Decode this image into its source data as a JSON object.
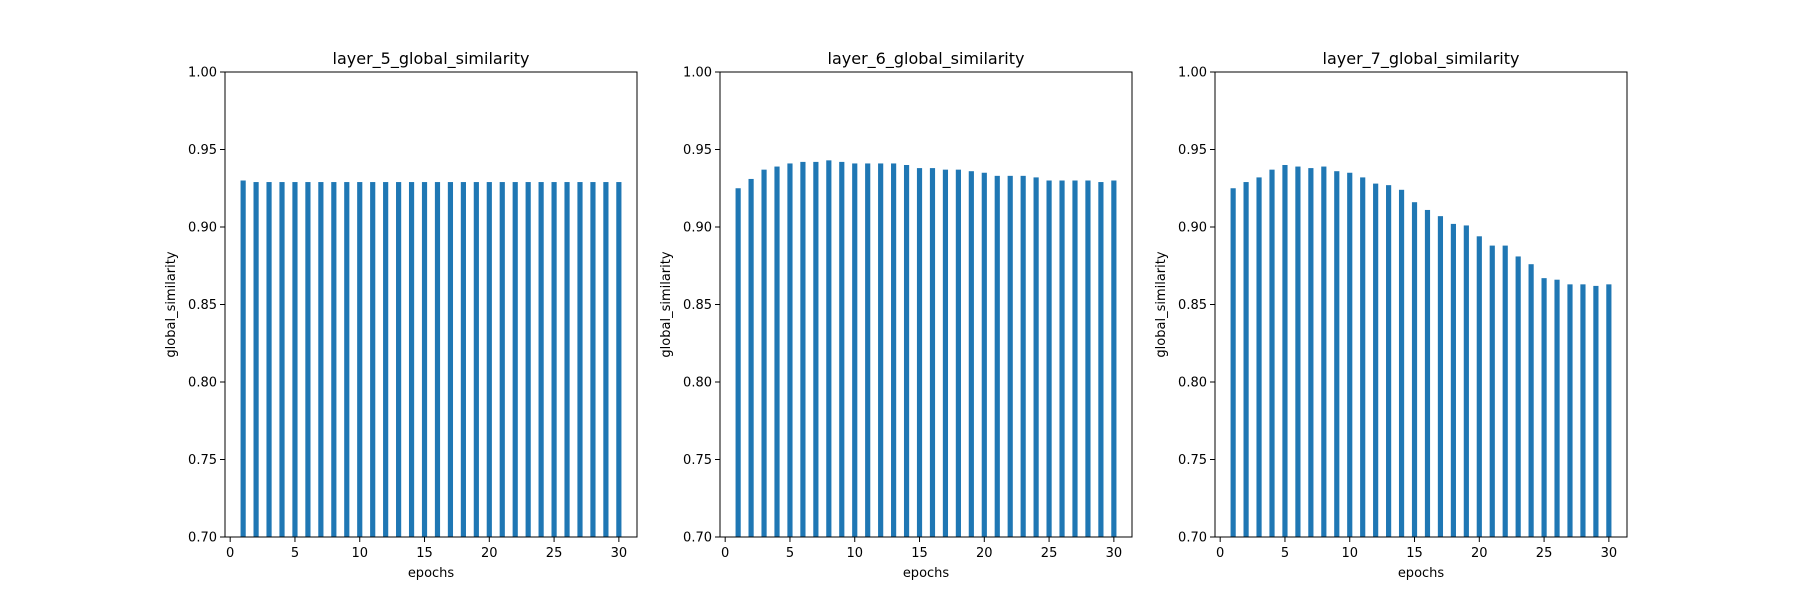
{
  "chart_data": [
    {
      "type": "bar",
      "title": "layer_5_global_similarity",
      "xlabel": "epochs",
      "ylabel": "global_similarity",
      "xlim": [
        -0.4,
        31.4
      ],
      "ylim": [
        0.7,
        1.0
      ],
      "xticks": [
        0,
        5,
        10,
        15,
        20,
        25,
        30
      ],
      "xtick_labels": [
        "0",
        "5",
        "10",
        "15",
        "20",
        "25",
        "30"
      ],
      "yticks": [
        0.7,
        0.75,
        0.8,
        0.85,
        0.9,
        0.95,
        1.0
      ],
      "ytick_labels": [
        "0.70",
        "0.75",
        "0.80",
        "0.85",
        "0.90",
        "0.95",
        "1.00"
      ],
      "bar_color": "#1f77b4",
      "x": [
        1,
        2,
        3,
        4,
        5,
        6,
        7,
        8,
        9,
        10,
        11,
        12,
        13,
        14,
        15,
        16,
        17,
        18,
        19,
        20,
        21,
        22,
        23,
        24,
        25,
        26,
        27,
        28,
        29,
        30
      ],
      "values": [
        0.93,
        0.929,
        0.929,
        0.929,
        0.929,
        0.929,
        0.929,
        0.929,
        0.929,
        0.929,
        0.929,
        0.929,
        0.929,
        0.929,
        0.929,
        0.929,
        0.929,
        0.929,
        0.929,
        0.929,
        0.929,
        0.929,
        0.929,
        0.929,
        0.929,
        0.929,
        0.929,
        0.929,
        0.929,
        0.929
      ]
    },
    {
      "type": "bar",
      "title": "layer_6_global_similarity",
      "xlabel": "epochs",
      "ylabel": "global_similarity",
      "xlim": [
        -0.4,
        31.4
      ],
      "ylim": [
        0.7,
        1.0
      ],
      "xticks": [
        0,
        5,
        10,
        15,
        20,
        25,
        30
      ],
      "xtick_labels": [
        "0",
        "5",
        "10",
        "15",
        "20",
        "25",
        "30"
      ],
      "yticks": [
        0.7,
        0.75,
        0.8,
        0.85,
        0.9,
        0.95,
        1.0
      ],
      "ytick_labels": [
        "0.70",
        "0.75",
        "0.80",
        "0.85",
        "0.90",
        "0.95",
        "1.00"
      ],
      "bar_color": "#1f77b4",
      "x": [
        1,
        2,
        3,
        4,
        5,
        6,
        7,
        8,
        9,
        10,
        11,
        12,
        13,
        14,
        15,
        16,
        17,
        18,
        19,
        20,
        21,
        22,
        23,
        24,
        25,
        26,
        27,
        28,
        29,
        30
      ],
      "values": [
        0.925,
        0.931,
        0.937,
        0.939,
        0.941,
        0.942,
        0.942,
        0.943,
        0.942,
        0.941,
        0.941,
        0.941,
        0.941,
        0.94,
        0.938,
        0.938,
        0.937,
        0.937,
        0.936,
        0.935,
        0.933,
        0.933,
        0.933,
        0.932,
        0.93,
        0.93,
        0.93,
        0.93,
        0.929,
        0.93
      ]
    },
    {
      "type": "bar",
      "title": "layer_7_global_similarity",
      "xlabel": "epochs",
      "ylabel": "global_similarity",
      "xlim": [
        -0.4,
        31.4
      ],
      "ylim": [
        0.7,
        1.0
      ],
      "xticks": [
        0,
        5,
        10,
        15,
        20,
        25,
        30
      ],
      "xtick_labels": [
        "0",
        "5",
        "10",
        "15",
        "20",
        "25",
        "30"
      ],
      "yticks": [
        0.7,
        0.75,
        0.8,
        0.85,
        0.9,
        0.95,
        1.0
      ],
      "ytick_labels": [
        "0.70",
        "0.75",
        "0.80",
        "0.85",
        "0.90",
        "0.95",
        "1.00"
      ],
      "bar_color": "#1f77b4",
      "x": [
        1,
        2,
        3,
        4,
        5,
        6,
        7,
        8,
        9,
        10,
        11,
        12,
        13,
        14,
        15,
        16,
        17,
        18,
        19,
        20,
        21,
        22,
        23,
        24,
        25,
        26,
        27,
        28,
        29,
        30
      ],
      "values": [
        0.925,
        0.929,
        0.932,
        0.937,
        0.94,
        0.939,
        0.938,
        0.939,
        0.936,
        0.935,
        0.932,
        0.928,
        0.927,
        0.924,
        0.916,
        0.911,
        0.907,
        0.902,
        0.901,
        0.894,
        0.888,
        0.888,
        0.881,
        0.876,
        0.867,
        0.866,
        0.863,
        0.863,
        0.862,
        0.863
      ]
    }
  ]
}
